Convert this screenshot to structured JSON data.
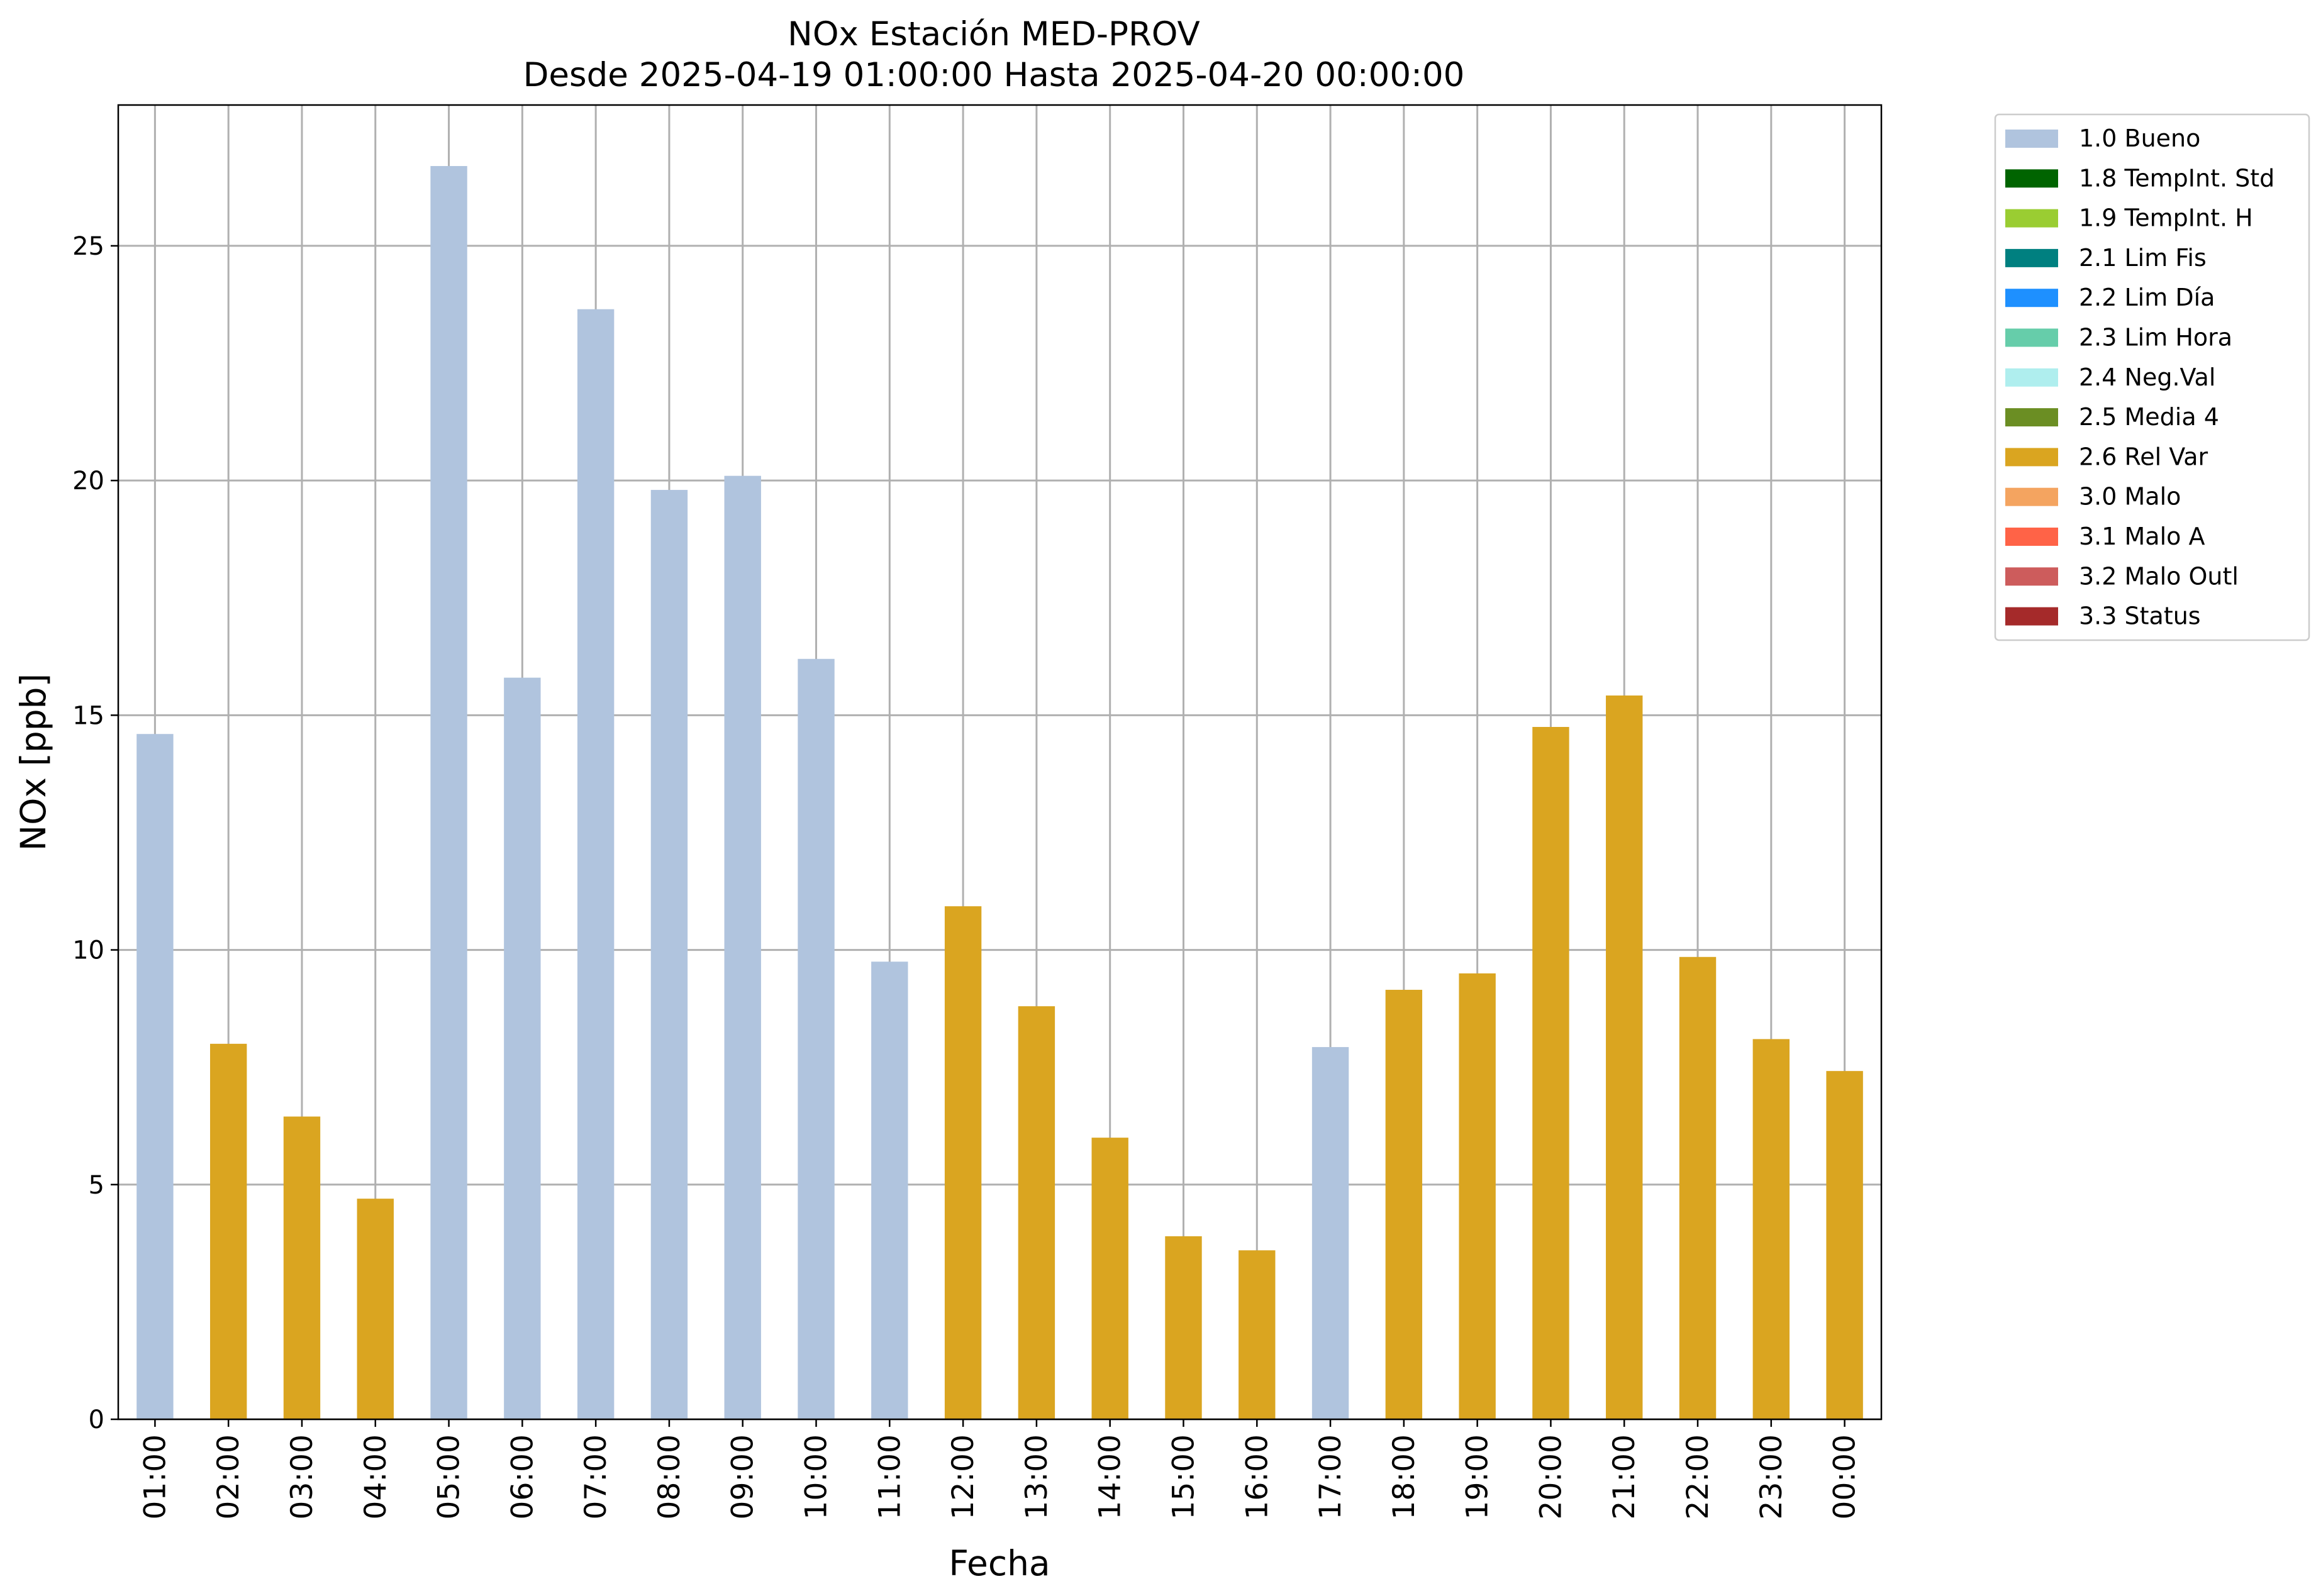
{
  "chart_data": {
    "type": "bar",
    "title": "NOx Estación MED-PROV",
    "subtitle": "Desde 2025-04-19 01:00:00 Hasta 2025-04-20 00:00:00",
    "xlabel": "Fecha",
    "ylabel": "NOx [ppb]",
    "ylim": [
      0,
      28
    ],
    "yticks": [
      0,
      5,
      10,
      15,
      20,
      25
    ],
    "grid": true,
    "legend_position": "outside-top-right",
    "categories": [
      "01:00",
      "02:00",
      "03:00",
      "04:00",
      "05:00",
      "06:00",
      "07:00",
      "08:00",
      "09:00",
      "10:00",
      "11:00",
      "12:00",
      "13:00",
      "14:00",
      "15:00",
      "16:00",
      "17:00",
      "18:00",
      "19:00",
      "20:00",
      "21:00",
      "22:00",
      "23:00",
      "00:00"
    ],
    "values": [
      14.6,
      8.0,
      6.45,
      4.7,
      26.7,
      15.8,
      23.65,
      19.8,
      20.1,
      16.2,
      9.75,
      10.93,
      8.8,
      6.0,
      3.9,
      3.6,
      7.93,
      9.15,
      9.5,
      14.75,
      15.42,
      9.85,
      8.1,
      7.42
    ],
    "flags": [
      "1.0 Bueno",
      "2.6 Rel Var",
      "2.6 Rel Var",
      "2.6 Rel Var",
      "1.0 Bueno",
      "1.0 Bueno",
      "1.0 Bueno",
      "1.0 Bueno",
      "1.0 Bueno",
      "1.0 Bueno",
      "1.0 Bueno",
      "2.6 Rel Var",
      "2.6 Rel Var",
      "2.6 Rel Var",
      "2.6 Rel Var",
      "2.6 Rel Var",
      "1.0 Bueno",
      "2.6 Rel Var",
      "2.6 Rel Var",
      "2.6 Rel Var",
      "2.6 Rel Var",
      "2.6 Rel Var",
      "2.6 Rel Var",
      "2.6 Rel Var"
    ],
    "legend": [
      {
        "name": "1.0 Bueno",
        "color": "#b0c4de"
      },
      {
        "name": "1.8 TempInt. Std",
        "color": "#006400"
      },
      {
        "name": "1.9 TempInt. H",
        "color": "#9acd32"
      },
      {
        "name": "2.1 Lim Fis",
        "color": "#008080"
      },
      {
        "name": "2.2 Lim Día",
        "color": "#1e90ff"
      },
      {
        "name": "2.3 Lim Hora",
        "color": "#66cdaa"
      },
      {
        "name": "2.4 Neg.Val",
        "color": "#afeeee"
      },
      {
        "name": "2.5 Media 4",
        "color": "#6b8e23"
      },
      {
        "name": "2.6 Rel Var",
        "color": "#daa520"
      },
      {
        "name": "3.0 Malo",
        "color": "#f4a460"
      },
      {
        "name": "3.1 Malo A",
        "color": "#ff6347"
      },
      {
        "name": "3.2 Malo Outl",
        "color": "#cd5c5c"
      },
      {
        "name": "3.3 Status",
        "color": "#a52a2a"
      }
    ]
  }
}
